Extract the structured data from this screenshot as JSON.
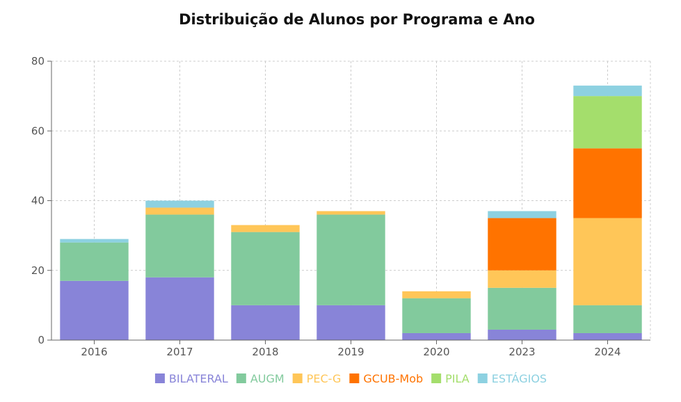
{
  "chart_data": {
    "type": "bar",
    "stacked": true,
    "title": "Distribuição de Alunos por Programa e Ano",
    "xlabel": "",
    "ylabel": "",
    "categories": [
      "2016",
      "2017",
      "2018",
      "2019",
      "2020",
      "2023",
      "2024"
    ],
    "ylim": [
      0,
      80
    ],
    "yticks": [
      0,
      20,
      40,
      60,
      80
    ],
    "grid": true,
    "legend_position": "bottom",
    "series": [
      {
        "name": "BILATERAL",
        "color": "#8884d8",
        "values": [
          17,
          18,
          10,
          10,
          2,
          3,
          2
        ]
      },
      {
        "name": "AUGM",
        "color": "#82ca9d",
        "values": [
          11,
          18,
          21,
          26,
          10,
          12,
          8
        ]
      },
      {
        "name": "PEC-G",
        "color": "#ffc658",
        "values": [
          0,
          2,
          2,
          1,
          2,
          5,
          25
        ]
      },
      {
        "name": "GCUB-Mob",
        "color": "#ff7300",
        "values": [
          0,
          0,
          0,
          0,
          0,
          15,
          20
        ]
      },
      {
        "name": "PILA",
        "color": "#a4de6c",
        "values": [
          0,
          0,
          0,
          0,
          0,
          0,
          15
        ]
      },
      {
        "name": "ESTÁGIOS",
        "color": "#8dd1e1",
        "values": [
          1,
          2,
          0,
          0,
          0,
          2,
          3
        ]
      }
    ]
  }
}
